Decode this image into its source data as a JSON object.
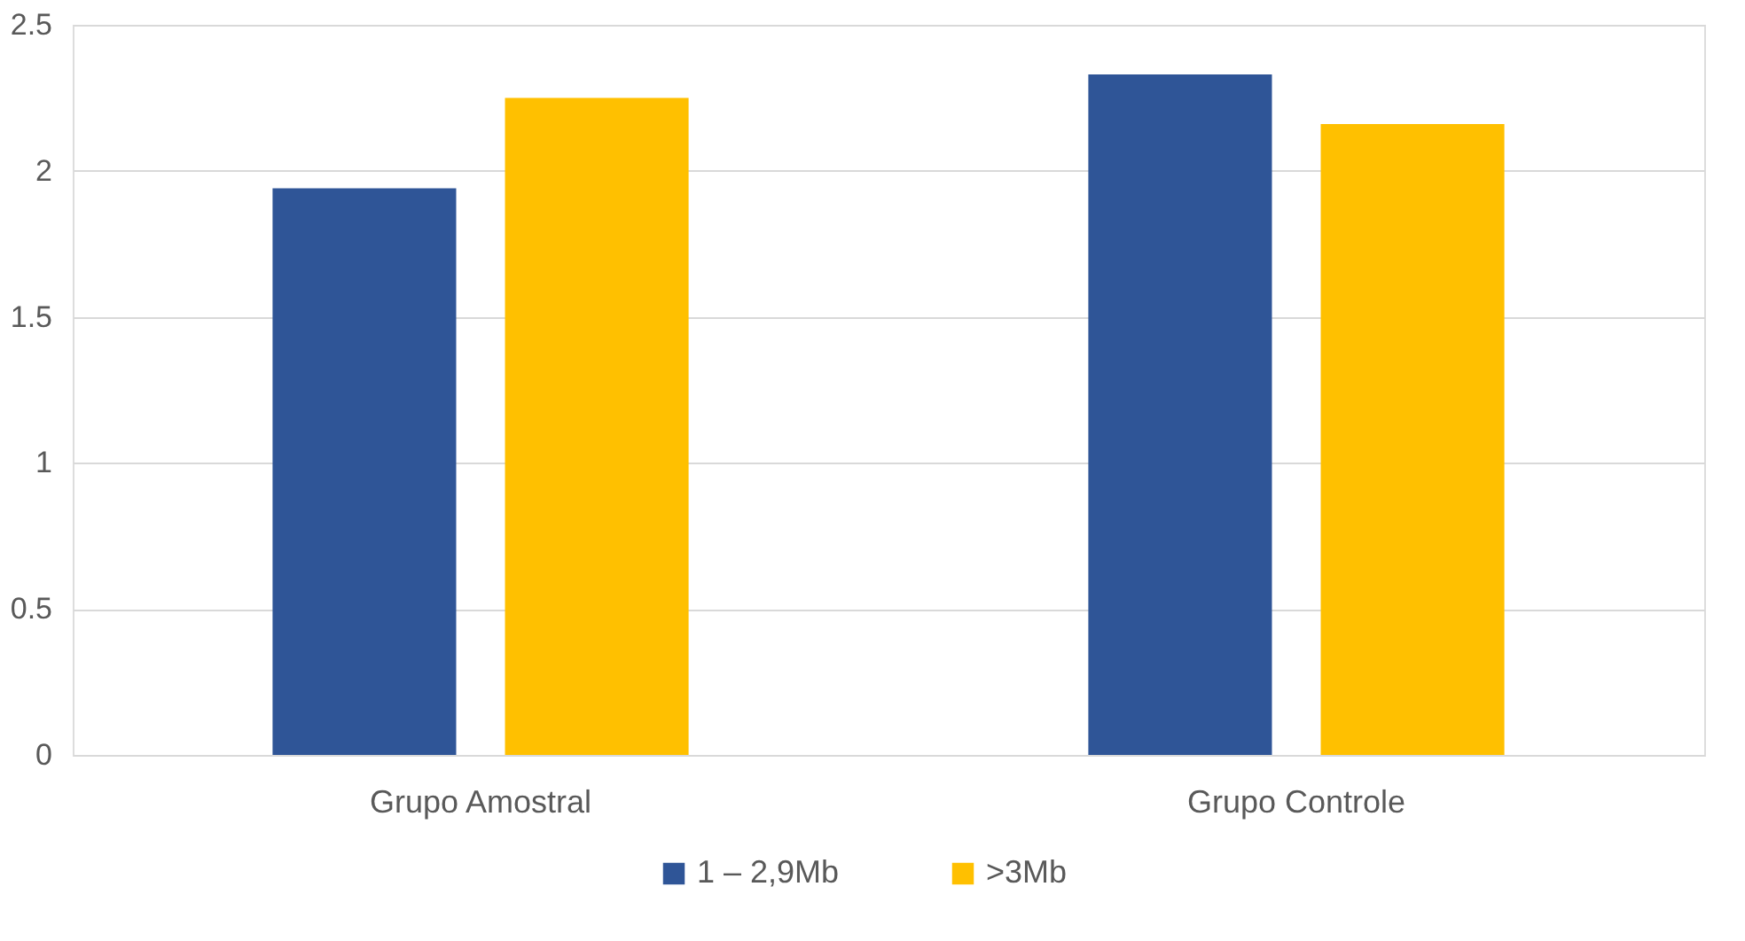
{
  "chart_data": {
    "type": "bar",
    "categories": [
      "Grupo Amostral",
      "Grupo Controle"
    ],
    "series": [
      {
        "name": "1 – 2,9Mb",
        "color": "#2f5597",
        "values": [
          1.94,
          2.33
        ]
      },
      {
        "name": ">3Mb",
        "color": "#ffc000",
        "values": [
          2.25,
          2.16
        ]
      }
    ],
    "ylim": [
      0,
      2.5
    ],
    "yticks": [
      0,
      0.5,
      1,
      1.5,
      2,
      2.5
    ],
    "grid": "y",
    "legend": "bottom"
  }
}
